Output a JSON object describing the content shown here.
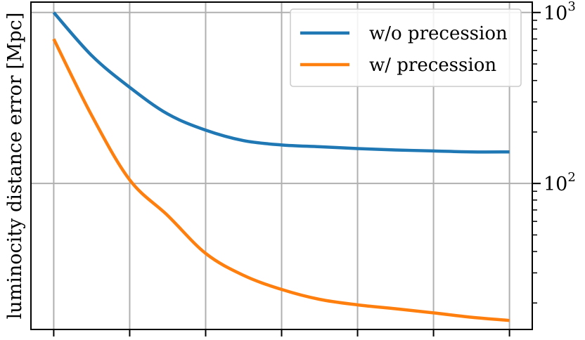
{
  "chart_data": {
    "type": "line",
    "title": "",
    "xlabel": "",
    "ylabel": "luminocity distance error [Mpc]",
    "yscale": "log",
    "yaxis_side": "right",
    "xlim": [
      -0.3,
      6.3
    ],
    "ylim": [
      14,
      1150
    ],
    "grid": true,
    "legend": "top-right",
    "y_tick_labels": [
      {
        "value": 100,
        "base": "10",
        "exp": "2"
      },
      {
        "value": 1000,
        "base": "10",
        "exp": "3"
      }
    ],
    "x": [
      0,
      0.5,
      1,
      1.5,
      2,
      2.5,
      3,
      3.5,
      4,
      4.5,
      5,
      5.5,
      6
    ],
    "series": [
      {
        "name": "w/o precession",
        "color": "#1f77b4",
        "values": [
          1000,
          560,
          365,
          255,
          205,
          178,
          168,
          164,
          160,
          157,
          155,
          153,
          153
        ]
      },
      {
        "name": "w/ precession",
        "color": "#ff7f0e",
        "values": [
          700,
          250,
          105,
          65,
          39,
          29,
          24,
          21,
          19.5,
          18.5,
          17.5,
          16.5,
          15.8
        ]
      }
    ]
  }
}
